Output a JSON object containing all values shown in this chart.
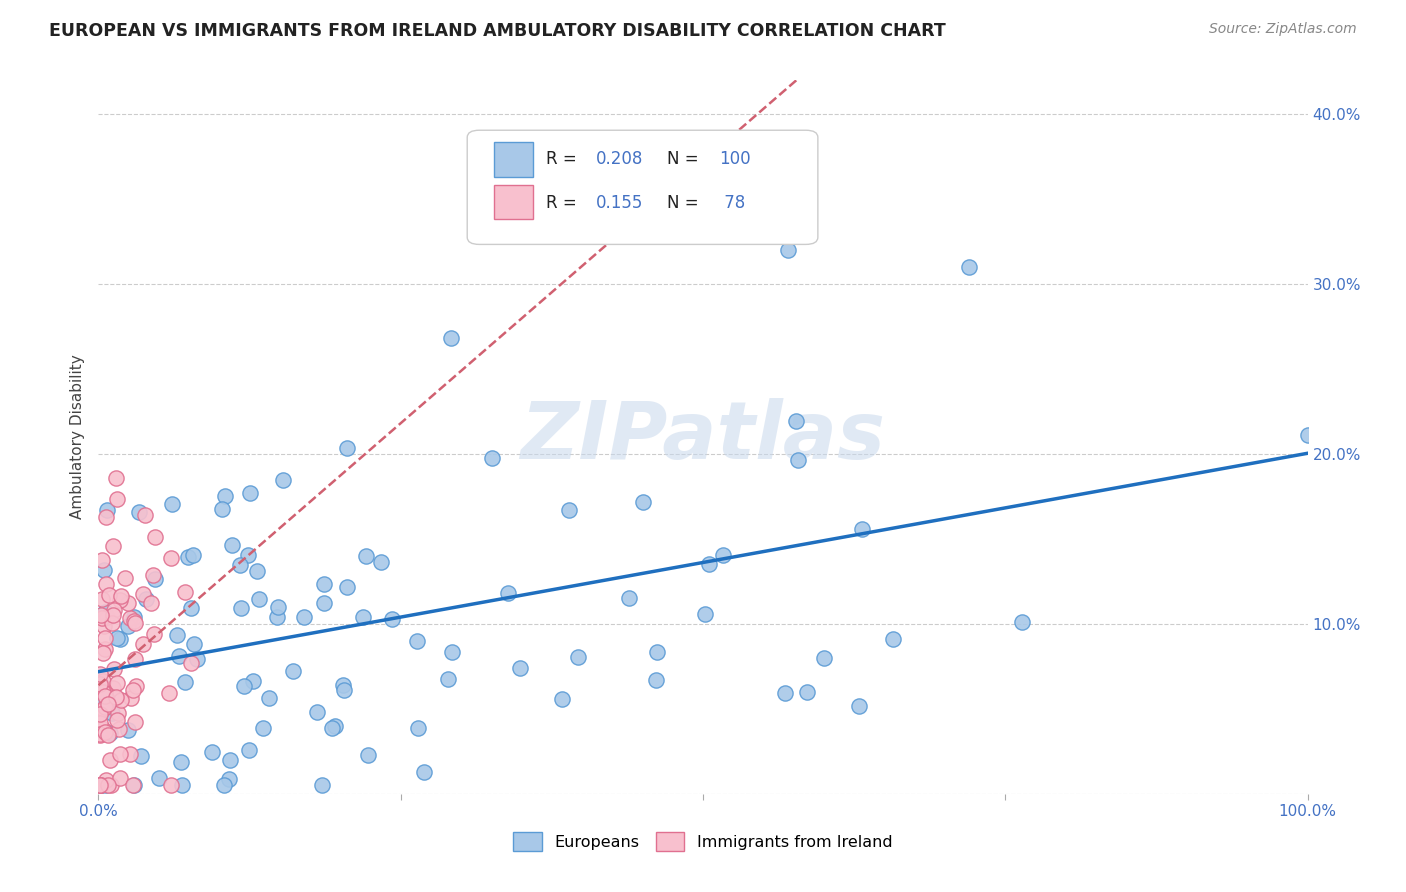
{
  "title": "EUROPEAN VS IMMIGRANTS FROM IRELAND AMBULATORY DISABILITY CORRELATION CHART",
  "source": "Source: ZipAtlas.com",
  "ylabel": "Ambulatory Disability",
  "xlim": [
    0,
    1.0
  ],
  "ylim": [
    0,
    0.42
  ],
  "xticks": [
    0.0,
    0.25,
    0.5,
    0.75,
    1.0
  ],
  "xticklabels": [
    "0.0%",
    "",
    "",
    "",
    "100.0%"
  ],
  "ytick_vals": [
    0.0,
    0.1,
    0.2,
    0.3,
    0.4
  ],
  "yticklabels": [
    "",
    "10.0%",
    "20.0%",
    "30.0%",
    "40.0%"
  ],
  "legend_labels": [
    "Europeans",
    "Immigrants from Ireland"
  ],
  "blue_scatter_color": "#A8C8E8",
  "blue_edge_color": "#5B9BD5",
  "pink_scatter_color": "#F8C0CE",
  "pink_edge_color": "#E07090",
  "blue_line_color": "#1F6FBF",
  "pink_line_color": "#D06070",
  "watermark": "ZIPatlas",
  "blue_R": 0.208,
  "pink_R": 0.155,
  "blue_N": 100,
  "pink_N": 78,
  "background_color": "#FFFFFF",
  "grid_color": "#CCCCCC",
  "title_color": "#222222",
  "axis_tick_color": "#4472C4",
  "legend_text_color_dark": "#222222",
  "legend_text_color_blue": "#4472C4"
}
